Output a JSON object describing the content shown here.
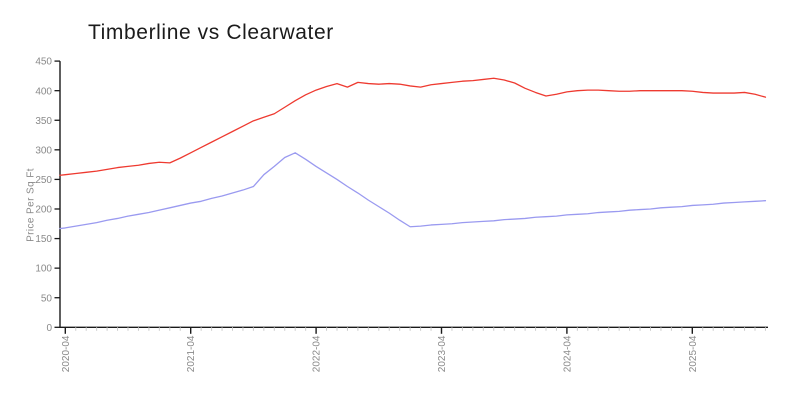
{
  "chart_data": {
    "type": "line",
    "title": "Timberline vs Clearwater",
    "ylabel": "Price Per Sq Ft",
    "xlabel": "",
    "grid": false,
    "legend": "none",
    "ylim": [
      0,
      450
    ],
    "yticks": [
      0,
      50,
      100,
      150,
      200,
      250,
      300,
      350,
      400,
      450
    ],
    "xtick_labels": [
      "2020-04",
      "2021-04",
      "2022-04",
      "2023-04",
      "2024-04",
      "2025-04"
    ],
    "xtick_minor": "monthly",
    "categories": [
      "2020-03",
      "2020-04",
      "2020-05",
      "2020-06",
      "2020-07",
      "2020-08",
      "2020-09",
      "2020-10",
      "2020-11",
      "2020-12",
      "2021-01",
      "2021-02",
      "2021-03",
      "2021-04",
      "2021-05",
      "2021-06",
      "2021-07",
      "2021-08",
      "2021-09",
      "2021-10",
      "2021-11",
      "2021-12",
      "2022-01",
      "2022-02",
      "2022-03",
      "2022-04",
      "2022-05",
      "2022-06",
      "2022-07",
      "2022-08",
      "2022-09",
      "2022-10",
      "2022-11",
      "2022-12",
      "2023-01",
      "2023-02",
      "2023-03",
      "2023-04",
      "2023-05",
      "2023-06",
      "2023-07",
      "2023-08",
      "2023-09",
      "2023-10",
      "2023-11",
      "2023-12",
      "2024-01",
      "2024-02",
      "2024-03",
      "2024-04",
      "2024-05",
      "2024-06",
      "2024-07",
      "2024-08",
      "2024-09",
      "2024-10",
      "2024-11",
      "2024-12",
      "2025-01",
      "2025-02",
      "2025-03",
      "2025-04",
      "2025-05",
      "2025-06",
      "2025-07",
      "2025-08",
      "2025-09",
      "2025-10",
      "2025-11"
    ],
    "series": [
      {
        "name": "Timberline",
        "color": "#ee3a30",
        "values": [
          256,
          258,
          260,
          262,
          264,
          267,
          270,
          272,
          274,
          277,
          279,
          278,
          286,
          295,
          304,
          313,
          322,
          331,
          340,
          349,
          355,
          361,
          372,
          383,
          393,
          401,
          407,
          412,
          406,
          414,
          412,
          411,
          412,
          411,
          408,
          406,
          410,
          412,
          414,
          416,
          417,
          419,
          421,
          418,
          413,
          404,
          397,
          391,
          394,
          398,
          400,
          401,
          401,
          400,
          399,
          399,
          400,
          400,
          400,
          400,
          400,
          399,
          397,
          396,
          396,
          396,
          397,
          394,
          389
        ]
      },
      {
        "name": "Clearwater",
        "color": "#9a9af0",
        "values": [
          166,
          168,
          171,
          174,
          177,
          181,
          184,
          188,
          191,
          194,
          198,
          202,
          206,
          210,
          213,
          218,
          222,
          227,
          232,
          238,
          258,
          272,
          287,
          295,
          284,
          272,
          261,
          250,
          238,
          227,
          215,
          204,
          193,
          181,
          170,
          171,
          173,
          174,
          175,
          177,
          178,
          179,
          180,
          182,
          183,
          184,
          186,
          187,
          188,
          190,
          191,
          192,
          194,
          195,
          196,
          198,
          199,
          200,
          202,
          203,
          204,
          206,
          207,
          208,
          210,
          211,
          212,
          213,
          214
        ]
      }
    ]
  },
  "colors": {
    "background": "#ffffff",
    "axis": "#1a1a1a",
    "tick_label": "#8a8a8a",
    "minor_tick": "#cccccc"
  }
}
